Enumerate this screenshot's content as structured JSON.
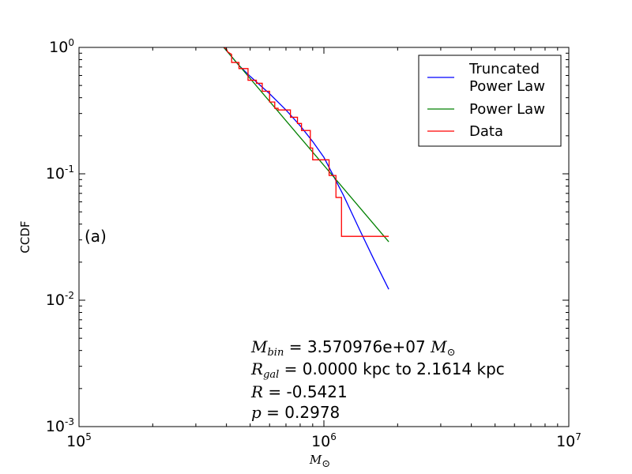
{
  "chart_data": {
    "type": "line",
    "title": "",
    "xlabel": "M",
    "xlabel_sub": "⊙",
    "ylabel": "CCDF",
    "xscale": "log",
    "yscale": "log",
    "xlim": [
      100000,
      10000000
    ],
    "ylim": [
      0.001,
      1
    ],
    "grid": false,
    "legend_placement": "top-right",
    "x_ticks": [
      {
        "base": "10",
        "exp": "5",
        "value": 100000
      },
      {
        "base": "10",
        "exp": "6",
        "value": 1000000
      },
      {
        "base": "10",
        "exp": "7",
        "value": 10000000
      }
    ],
    "y_ticks": [
      {
        "base": "10",
        "exp": "0",
        "value": 1
      },
      {
        "base": "10",
        "exp": "-1",
        "value": 0.1
      },
      {
        "base": "10",
        "exp": "-2",
        "value": 0.01
      },
      {
        "base": "10",
        "exp": "-3",
        "value": 0.001
      }
    ],
    "series": [
      {
        "name_lines": [
          "Truncated",
          "Power Law"
        ],
        "color": "#0000ff",
        "style": "line",
        "x": [
          390000,
          450000,
          500000,
          600000,
          700000,
          800000,
          900000,
          1000000,
          1200000,
          1400000,
          1600000,
          1840000
        ],
        "y": [
          1.0,
          0.72,
          0.59,
          0.43,
          0.32,
          0.24,
          0.18,
          0.135,
          0.068,
          0.036,
          0.021,
          0.0122
        ]
      },
      {
        "name": "Power Law",
        "color": "#008000",
        "style": "line",
        "x": [
          390000,
          1840000
        ],
        "y": [
          1.0,
          0.029
        ]
      },
      {
        "name": "Data",
        "color": "#ff0000",
        "style": "step",
        "x": [
          390000,
          400000,
          405000,
          420000,
          420000,
          450000,
          450000,
          490000,
          490000,
          530000,
          530000,
          560000,
          560000,
          600000,
          600000,
          630000,
          630000,
          650000,
          650000,
          730000,
          730000,
          780000,
          780000,
          810000,
          810000,
          880000,
          880000,
          900000,
          900000,
          1050000,
          1050000,
          1120000,
          1120000,
          1180000,
          1180000,
          1840000
        ],
        "y": [
          1.0,
          0.97,
          0.92,
          0.88,
          0.76,
          0.76,
          0.68,
          0.68,
          0.55,
          0.55,
          0.52,
          0.52,
          0.45,
          0.45,
          0.37,
          0.37,
          0.33,
          0.33,
          0.32,
          0.32,
          0.28,
          0.28,
          0.25,
          0.25,
          0.22,
          0.22,
          0.16,
          0.16,
          0.129,
          0.129,
          0.097,
          0.097,
          0.065,
          0.065,
          0.032,
          0.032
        ]
      }
    ],
    "panel_label": "(a)",
    "annotations": [
      {
        "sym": "M",
        "sub": "bin",
        "sub_sup": "",
        "text": " = 3.570976e+07 ",
        "tail_sym": "M",
        "tail_sub": "⊙"
      },
      {
        "sym": "R",
        "sub": "gal",
        "text": " = 0.0000 kpc to 2.1614 kpc"
      },
      {
        "sym": "R",
        "sub": "",
        "text": " = -0.5421"
      },
      {
        "sym": "p",
        "sub": "",
        "text": " = 0.2978"
      }
    ]
  }
}
